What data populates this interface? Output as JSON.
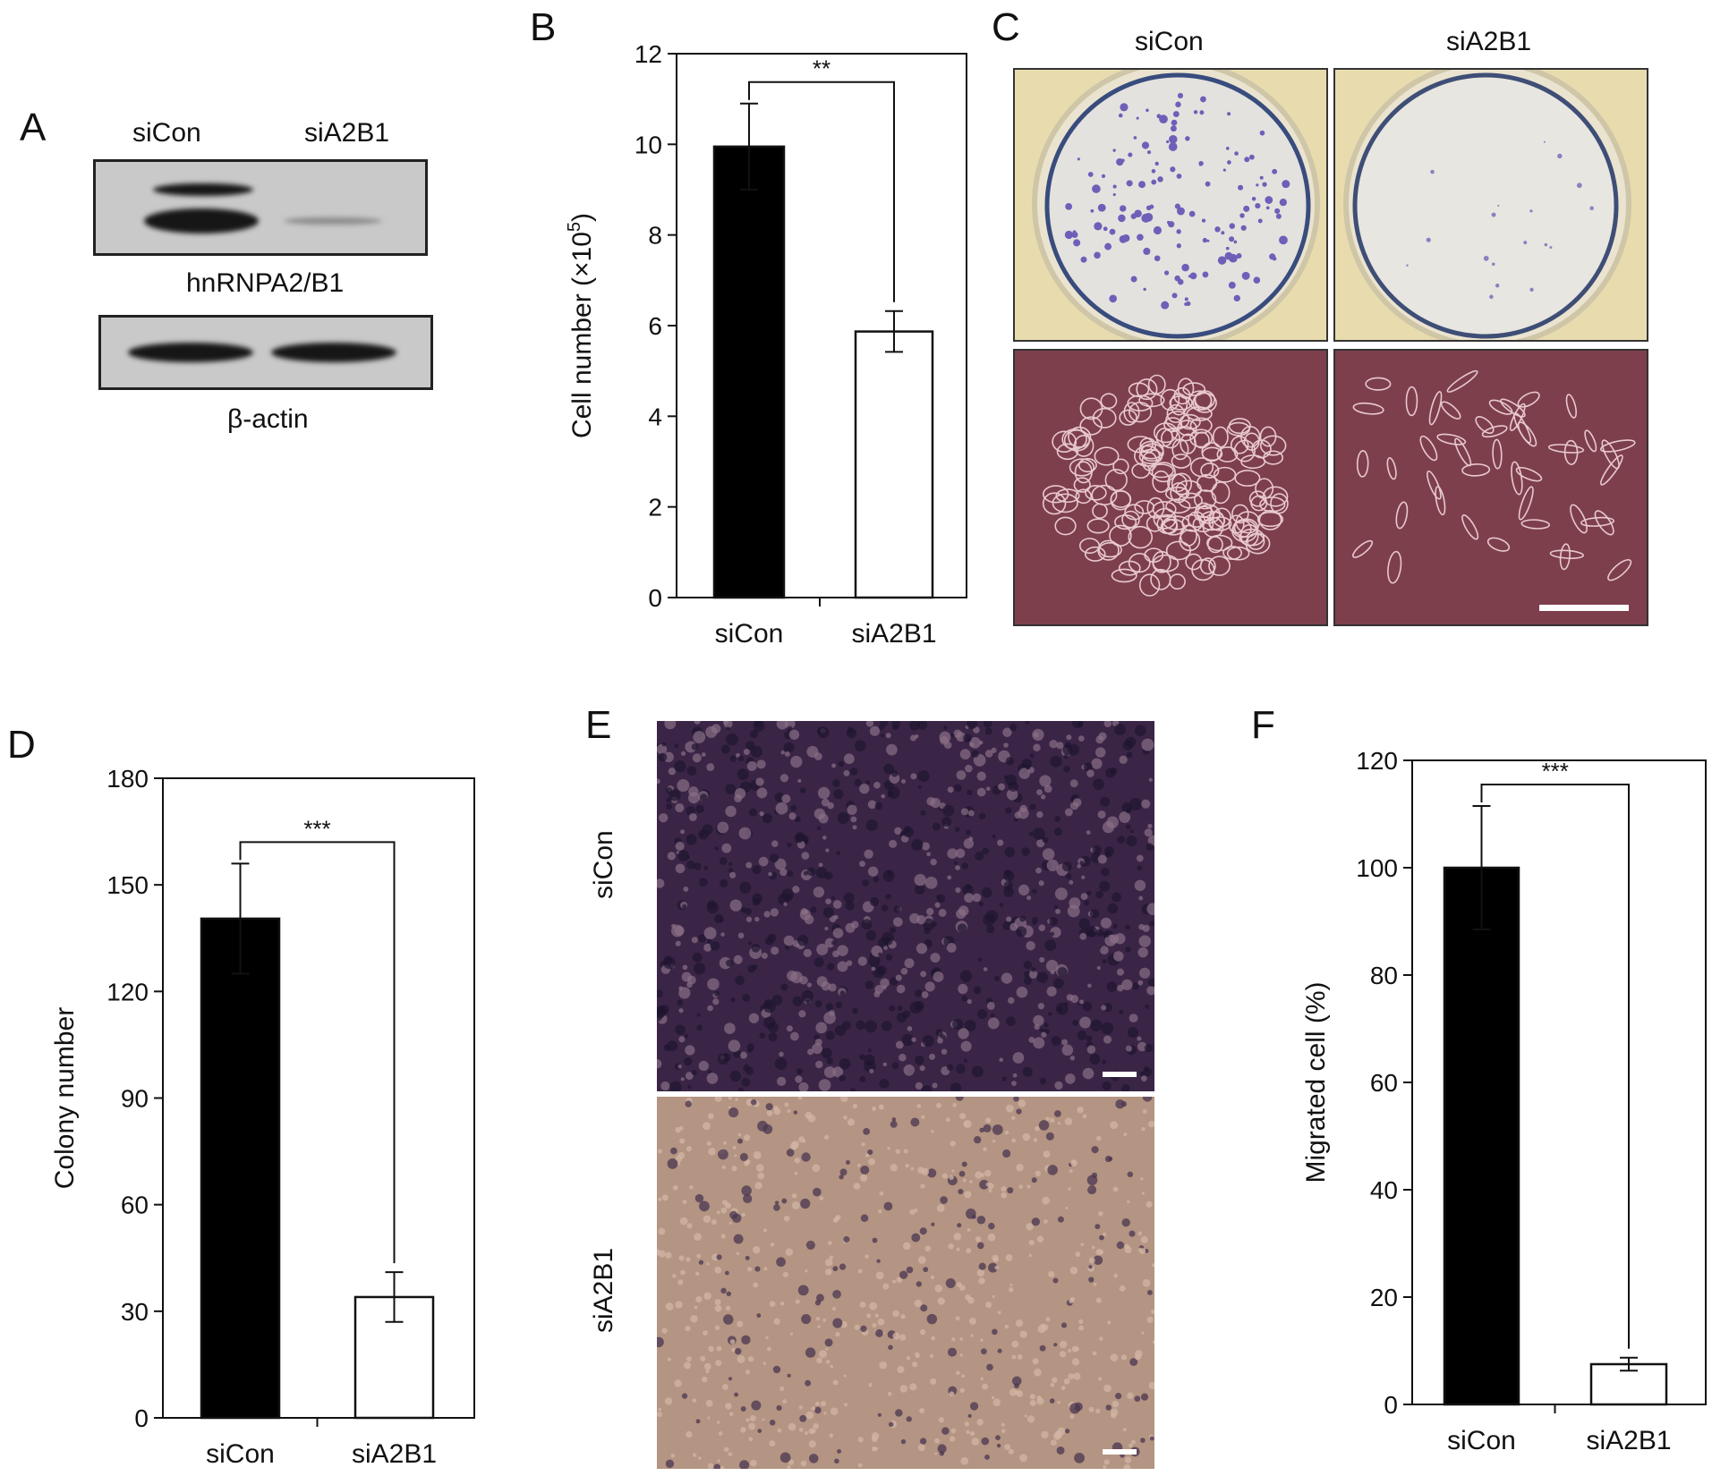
{
  "panels": {
    "a": {
      "letter": "A",
      "lane_labels": [
        "siCon",
        "siA2B1"
      ],
      "blot1_label": "hnRNPA2/B1",
      "blot2_label": "β-actin"
    },
    "b": {
      "letter": "B"
    },
    "c": {
      "letter": "C",
      "col_labels": [
        "siCon",
        "siA2B1"
      ]
    },
    "d": {
      "letter": "D"
    },
    "e": {
      "letter": "E",
      "row_labels": [
        "siCon",
        "siA2B1"
      ]
    },
    "f": {
      "letter": "F"
    }
  },
  "chart_data": [
    {
      "id": "B",
      "type": "bar",
      "categories": [
        "siCon",
        "siA2B1"
      ],
      "values": [
        9.95,
        5.87
      ],
      "errors": [
        0.95,
        0.45
      ],
      "bar_colors": [
        "#000000",
        "#ffffff"
      ],
      "ylabel": "Cell number (×10",
      "ylabel_sup": "5",
      "ylabel_end": ")",
      "ylim": [
        0,
        12
      ],
      "yticks": [
        0,
        2,
        4,
        6,
        8,
        10,
        12
      ],
      "significance": "**"
    },
    {
      "id": "D",
      "type": "bar",
      "categories": [
        "siCon",
        "siA2B1"
      ],
      "values": [
        140.5,
        34
      ],
      "errors": [
        15.5,
        7
      ],
      "bar_colors": [
        "#000000",
        "#ffffff"
      ],
      "ylabel": "Colony number",
      "ylim": [
        0,
        180
      ],
      "yticks": [
        0,
        30,
        60,
        90,
        120,
        150,
        180
      ],
      "significance": "***"
    },
    {
      "id": "F",
      "type": "bar",
      "categories": [
        "siCon",
        "siA2B1"
      ],
      "values": [
        100,
        7.5
      ],
      "errors": [
        11.5,
        1.2
      ],
      "bar_colors": [
        "#000000",
        "#ffffff"
      ],
      "ylabel": "Migrated cell (%)",
      "ylim": [
        0,
        120
      ],
      "yticks": [
        0,
        20,
        40,
        60,
        80,
        100,
        120
      ],
      "significance": "***"
    }
  ]
}
